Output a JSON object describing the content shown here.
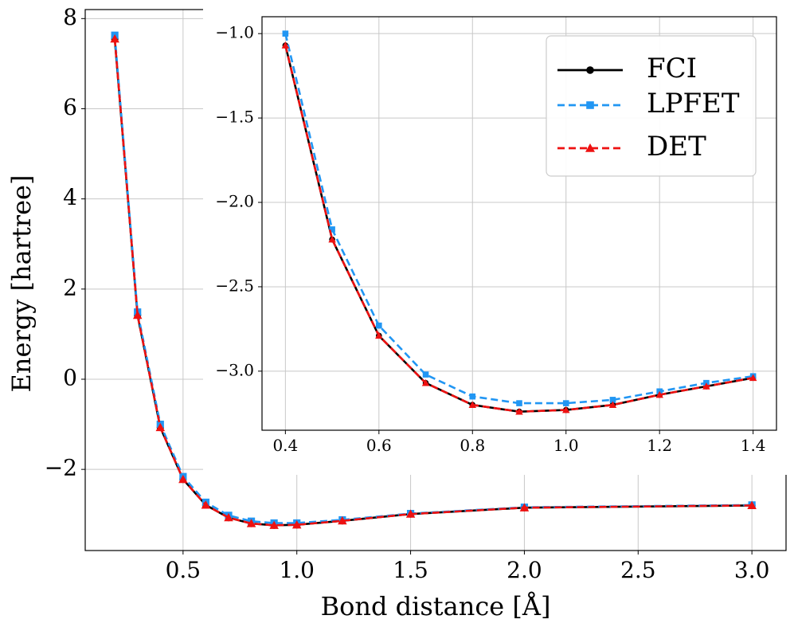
{
  "chart_data": [
    {
      "type": "line",
      "title": "",
      "xlabel": "Bond distance [Å]",
      "ylabel": "Energy [hartree]",
      "xlim": [
        0.07,
        3.15
      ],
      "ylim": [
        -3.8,
        8.2
      ],
      "xticks": [
        0.5,
        1.0,
        1.5,
        2.0,
        2.5,
        3.0
      ],
      "xtick_labels": [
        "0.5",
        "1.0",
        "1.5",
        "2.0",
        "2.5",
        "3.0"
      ],
      "yticks": [
        -2,
        0,
        2,
        4,
        6,
        8
      ],
      "ytick_labels": [
        "−2",
        "0",
        "2",
        "4",
        "6",
        "8"
      ],
      "grid": true,
      "series": [
        {
          "name": "FCI",
          "color": "#000000",
          "line": "solid",
          "marker": "circle",
          "x": [
            0.2,
            0.3,
            0.4,
            0.5,
            0.6,
            0.7,
            0.8,
            0.9,
            1.0,
            1.2,
            1.5,
            2.0,
            3.0
          ],
          "y": [
            7.55,
            1.42,
            -1.07,
            -2.22,
            -2.79,
            -3.07,
            -3.2,
            -3.24,
            -3.23,
            -3.14,
            -2.99,
            -2.85,
            -2.8
          ]
        },
        {
          "name": "LPFET",
          "color": "#2196f3",
          "line": "dashed",
          "marker": "square",
          "x": [
            0.2,
            0.3,
            0.4,
            0.5,
            0.6,
            0.7,
            0.8,
            0.9,
            1.0,
            1.2,
            1.5,
            2.0,
            3.0
          ],
          "y": [
            7.63,
            1.49,
            -1.0,
            -2.16,
            -2.73,
            -3.02,
            -3.15,
            -3.19,
            -3.19,
            -3.12,
            -2.98,
            -2.84,
            -2.79
          ]
        },
        {
          "name": "DET",
          "color": "#ee1111",
          "line": "dashed",
          "marker": "triangle",
          "x": [
            0.2,
            0.3,
            0.4,
            0.5,
            0.6,
            0.7,
            0.8,
            0.9,
            1.0,
            1.2,
            1.5,
            2.0,
            3.0
          ],
          "y": [
            7.55,
            1.42,
            -1.07,
            -2.22,
            -2.79,
            -3.07,
            -3.2,
            -3.24,
            -3.23,
            -3.14,
            -2.99,
            -2.85,
            -2.8
          ]
        }
      ]
    },
    {
      "type": "line",
      "title": "",
      "xlabel": "",
      "ylabel": "",
      "xlim": [
        0.35,
        1.45
      ],
      "ylim": [
        -3.35,
        -0.9
      ],
      "xticks": [
        0.4,
        0.6,
        0.8,
        1.0,
        1.2,
        1.4
      ],
      "xtick_labels": [
        "0.4",
        "0.6",
        "0.8",
        "1.0",
        "1.2",
        "1.4"
      ],
      "yticks": [
        -3.0,
        -2.5,
        -2.0,
        -1.5,
        -1.0
      ],
      "ytick_labels": [
        "−3.0",
        "−2.5",
        "−2.0",
        "−1.5",
        "−1.0"
      ],
      "grid": true,
      "legend": {
        "position": "top-right"
      },
      "series": [
        {
          "name": "FCI",
          "color": "#000000",
          "line": "solid",
          "marker": "circle",
          "x": [
            0.4,
            0.5,
            0.6,
            0.7,
            0.8,
            0.9,
            1.0,
            1.1,
            1.2,
            1.3,
            1.4
          ],
          "y": [
            -1.07,
            -2.22,
            -2.79,
            -3.07,
            -3.2,
            -3.24,
            -3.23,
            -3.2,
            -3.14,
            -3.09,
            -3.04
          ]
        },
        {
          "name": "LPFET",
          "color": "#2196f3",
          "line": "dashed",
          "marker": "square",
          "x": [
            0.4,
            0.5,
            0.6,
            0.7,
            0.8,
            0.9,
            1.0,
            1.1,
            1.2,
            1.3,
            1.4
          ],
          "y": [
            -1.0,
            -2.16,
            -2.73,
            -3.02,
            -3.15,
            -3.19,
            -3.19,
            -3.17,
            -3.12,
            -3.07,
            -3.03
          ]
        },
        {
          "name": "DET",
          "color": "#ee1111",
          "line": "dashed",
          "marker": "triangle",
          "x": [
            0.4,
            0.5,
            0.6,
            0.7,
            0.8,
            0.9,
            1.0,
            1.1,
            1.2,
            1.3,
            1.4
          ],
          "y": [
            -1.07,
            -2.22,
            -2.79,
            -3.07,
            -3.2,
            -3.24,
            -3.23,
            -3.2,
            -3.14,
            -3.09,
            -3.04
          ]
        }
      ]
    }
  ]
}
